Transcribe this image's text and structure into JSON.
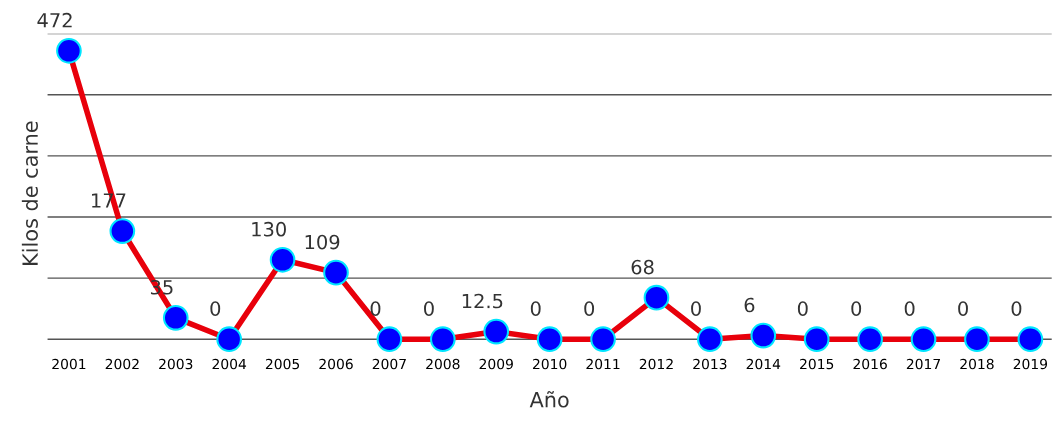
{
  "chart_data": {
    "type": "line",
    "xlabel": "Año",
    "ylabel": "Kilos de carne",
    "categories": [
      "2001",
      "2002",
      "2003",
      "2004",
      "2005",
      "2006",
      "2007",
      "2008",
      "2009",
      "2010",
      "2011",
      "2012",
      "2013",
      "2014",
      "2015",
      "2016",
      "2017",
      "2018",
      "2019"
    ],
    "series": [
      {
        "color": "#e8000b",
        "values": [
          472,
          177,
          35,
          0,
          130,
          109,
          0,
          0,
          12.5,
          0,
          0,
          68,
          0,
          6,
          0,
          0,
          0,
          0,
          0
        ]
      }
    ],
    "yticks": [
      {
        "value": 0,
        "label": null
      },
      {
        "value": 100,
        "label": null
      },
      {
        "value": 200,
        "label": null
      },
      {
        "value": 300,
        "label": null
      },
      {
        "value": 400,
        "label": null
      },
      {
        "value": 500,
        "label": null
      }
    ],
    "tick_labels": "x",
    "grid": "y",
    "legend": false,
    "marker": "circle",
    "line_style": "solid",
    "data_labels": true
  }
}
